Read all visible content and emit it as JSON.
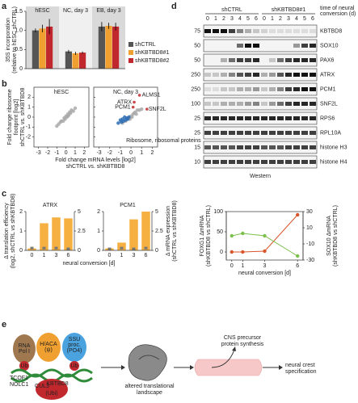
{
  "panel_labels": [
    "a",
    "b",
    "c",
    "d",
    "e"
  ],
  "chart_data": [
    {
      "type": "bar",
      "categories": [
        "hESC",
        "NC, day 3",
        "EB, day 3"
      ],
      "background_colors": [
        "#d9d9d9",
        "#f0f0f0",
        "#d9d9d9"
      ],
      "y_label": [
        "35S incorporation",
        "(relative to hESC shCTRL)"
      ],
      "ylim": [
        0,
        1.5
      ],
      "yticks": [
        0,
        0.5,
        {
          "value": 1,
          "label": "1.0"
        },
        1.5
      ],
      "series": [
        {
          "name": "shCTRL",
          "color": "#555555",
          "values": [
            1.0,
            0.45,
            1.1
          ],
          "errors": [
            0.05,
            0.04,
            0.12
          ]
        },
        {
          "name": "shKBTBD8#1",
          "color": "#f0a030",
          "values": [
            1.05,
            0.4,
            1.12
          ],
          "errors": [
            0.1,
            0.04,
            0.08
          ]
        },
        {
          "name": "shKBTBD8#2",
          "color": "#c0282d",
          "values": [
            1.1,
            0.42,
            1.1
          ],
          "errors": [
            0.2,
            0.03,
            0.1
          ]
        }
      ]
    },
    {
      "type": "scatter",
      "title": "hESC",
      "x_label": [
        "Fold change mRNA levels [log2]",
        "shCTRL vs. shKBTBD8"
      ],
      "y_label": [
        "Fold change ribosome",
        "footprint [log2]",
        "shCTRL vs. shKBTBD8"
      ],
      "xlim": [
        -3.5,
        2.5
      ],
      "xticks": [
        -3,
        -2,
        -1,
        0,
        1,
        2
      ],
      "ylim": [
        -3,
        3
      ],
      "yticks": [
        -2,
        -1,
        0,
        1,
        2
      ],
      "series": [
        {
          "color": "#aaaaaa",
          "x": [
            -0.8,
            -0.5,
            -0.3,
            -0.2,
            0,
            0.1,
            0.2,
            0.3,
            0.5,
            0.6,
            -0.1,
            0.4,
            0.8,
            -0.6,
            0.2,
            -1.0,
            1.0
          ],
          "y": [
            -0.7,
            -0.4,
            -0.4,
            -0.1,
            0.1,
            0,
            0.3,
            0.2,
            0.4,
            0.7,
            -0.2,
            0.5,
            0.6,
            -0.5,
            0.1,
            -0.9,
            0.9
          ]
        }
      ]
    },
    {
      "type": "scatter",
      "title": "NC, day 3",
      "xlim": [
        -3.5,
        2.5
      ],
      "xticks": [
        -3,
        -2,
        -1,
        0,
        1,
        2
      ],
      "ylim": [
        -3,
        3
      ],
      "yticks": [
        -2,
        -1,
        0,
        1,
        2
      ],
      "series": [
        {
          "color": "#aaaaaa",
          "x": [
            -0.8,
            -0.5,
            -0.3,
            -0.2,
            0,
            0.1,
            0.2,
            0.3,
            0.5,
            0.6,
            -0.1,
            0.4,
            0.8,
            1.0
          ],
          "y": [
            -0.6,
            -0.4,
            -0.2,
            -0.1,
            0.1,
            0,
            0.3,
            0.4,
            0.3,
            0.7,
            -0.2,
            0.5,
            0.7,
            0.8
          ]
        },
        {
          "name": "Ribosome, ribosomal proteins",
          "color": "#2e6fb5",
          "x": [
            -1.2,
            -1,
            -0.9,
            -0.8,
            -0.7,
            -0.6,
            -0.5,
            -0.4,
            -0.3,
            -0.2
          ],
          "y": [
            -0.6,
            -0.3,
            -0.5,
            -0.2,
            -0.4,
            0,
            -0.3,
            -0.1,
            -0.2,
            0
          ]
        },
        {
          "name": "ALMS1",
          "color": "#c0282d",
          "x": [
            0.8
          ],
          "y": [
            2.2
          ]
        },
        {
          "name": "ATRX",
          "color": "#c0282d",
          "x": [
            0.3
          ],
          "y": [
            1.5
          ]
        },
        {
          "name": "PCM1",
          "color": "#c0282d",
          "x": [
            0.2
          ],
          "y": [
            1.0
          ]
        },
        {
          "name": "SNF2L",
          "color": "#c0282d",
          "x": [
            1.5
          ],
          "y": [
            0.8
          ]
        }
      ]
    },
    {
      "type": "combo",
      "title": "ATRX",
      "categories": [
        "0",
        "1",
        "3",
        "6"
      ],
      "y_label": [
        "Δ translation efficiency",
        "(log2, shCTRL vs shKBTBD8)"
      ],
      "x_label": "neural conversion [d]",
      "ylim": [
        0,
        2
      ],
      "yticks": [
        0,
        1,
        2
      ],
      "y2lim": [
        0,
        5
      ],
      "y2ticks": [
        0,
        2.5,
        5
      ],
      "series": [
        {
          "color": "#f5b041",
          "values": [
            0.1,
            1.4,
            1.7,
            1.65
          ]
        },
        {
          "color": "#777777",
          "axis": "y2",
          "values": [
            0.3,
            0.3,
            0.3,
            0.2
          ]
        }
      ]
    },
    {
      "type": "combo",
      "title": "PCM1",
      "categories": [
        "0",
        "1",
        "3",
        "6"
      ],
      "y2_label": [
        "Δ mRNA expression",
        "(shCTRL vs shKBTBD8)"
      ],
      "ylim": [
        0,
        2
      ],
      "yticks": [
        0,
        1,
        2
      ],
      "y2lim": [
        0,
        5
      ],
      "y2ticks": [
        0,
        2.5,
        5
      ],
      "series": [
        {
          "color": "#f5b041",
          "values": [
            0.1,
            0.4,
            1.6,
            2.0
          ]
        },
        {
          "color": "#777777",
          "axis": "y2",
          "values": [
            0.2,
            0.3,
            0.2,
            0.3
          ]
        }
      ]
    },
    {
      "type": "line",
      "x": [
        0,
        1,
        3,
        6
      ],
      "x_label": "neural conversion [d]",
      "y_label": [
        "FOXG1 ΔmRNA",
        "(shKBTBD8 vs shCTRL)"
      ],
      "y2_label": [
        "SOX10 ΔmRNA",
        "(shKBTBD8 vs shCTRL)"
      ],
      "xlim": [
        -0.5,
        6.5
      ],
      "xticks": [
        0,
        1,
        3,
        6
      ],
      "ylim": [
        -20,
        100
      ],
      "yticks": [
        0,
        50,
        100
      ],
      "y2lim": [
        -30,
        30
      ],
      "y2ticks": [
        -30,
        -10,
        10,
        30
      ],
      "series": [
        {
          "color": "#d9542b",
          "values": [
            0,
            0,
            2,
            92
          ]
        },
        {
          "color": "#7cbf4a",
          "axis": "y2",
          "values": [
            0,
            3,
            0,
            -25
          ]
        }
      ]
    }
  ],
  "blot": {
    "groups": [
      "shCTRL",
      "shKBTBD8#1"
    ],
    "times": [
      "0",
      "1",
      "2",
      "3",
      "4",
      "5",
      "6"
    ],
    "time_label": [
      "time of neural",
      "conversion (d)"
    ],
    "rows": [
      {
        "marker": "75",
        "label": "KBTBD8"
      },
      {
        "marker": "50",
        "label": "SOX10"
      },
      {
        "marker": "50",
        "label": "PAX6"
      },
      {
        "marker": "250",
        "label": "ATRX"
      },
      {
        "marker": "250",
        "label": "PCM1"
      },
      {
        "marker": "100",
        "label": "SNF2L"
      },
      {
        "marker": "25",
        "label": "RPS6"
      },
      {
        "marker": "25",
        "label": "RPL10A"
      },
      {
        "marker": "15",
        "label": "histone H3"
      },
      {
        "marker": "10",
        "label": "histone H4"
      }
    ],
    "footer": "Western"
  },
  "diagram": {
    "complexes": [
      [
        "RNA",
        "Pol I"
      ],
      [
        "H/ACA",
        "(ψ)"
      ],
      [
        "SSU",
        "proc.",
        "(PO4)"
      ]
    ],
    "ub": "Ub",
    "adaptors": [
      "TCOF1",
      "NOLC1"
    ],
    "ligase": [
      "CUL3",
      "KBTBD8",
      "(Ubi)"
    ],
    "steps": [
      [
        "altered translational",
        "landscape"
      ],
      [
        "CNS precursor",
        "protein synthesis"
      ],
      [
        "neural crest",
        "specification"
      ]
    ]
  }
}
